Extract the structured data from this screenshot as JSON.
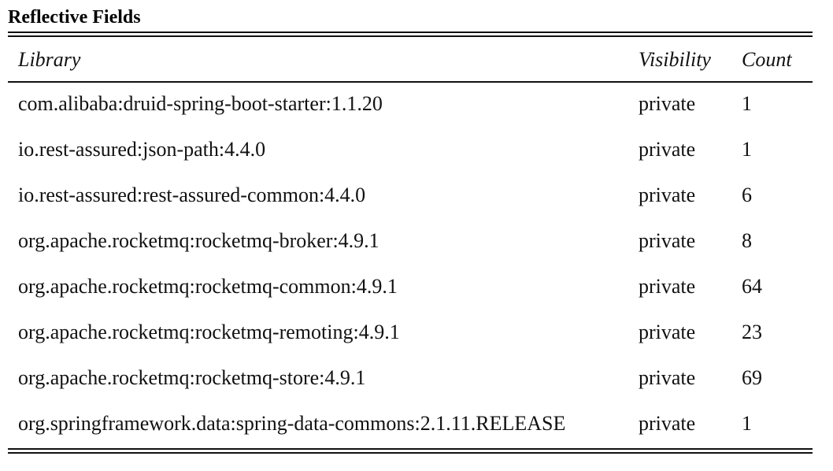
{
  "title": "Reflective Fields",
  "table": {
    "headers": {
      "library": "Library",
      "visibility": "Visibility",
      "count": "Count"
    },
    "rows": [
      {
        "library": "com.alibaba:druid-spring-boot-starter:1.1.20",
        "visibility": "private",
        "count": "1"
      },
      {
        "library": "io.rest-assured:json-path:4.4.0",
        "visibility": "private",
        "count": "1"
      },
      {
        "library": "io.rest-assured:rest-assured-common:4.4.0",
        "visibility": "private",
        "count": "6"
      },
      {
        "library": "org.apache.rocketmq:rocketmq-broker:4.9.1",
        "visibility": "private",
        "count": "8"
      },
      {
        "library": "org.apache.rocketmq:rocketmq-common:4.9.1",
        "visibility": "private",
        "count": "64"
      },
      {
        "library": "org.apache.rocketmq:rocketmq-remoting:4.9.1",
        "visibility": "private",
        "count": "23"
      },
      {
        "library": "org.apache.rocketmq:rocketmq-store:4.9.1",
        "visibility": "private",
        "count": "69"
      },
      {
        "library": "org.springframework.data:spring-data-commons:2.1.11.RELEASE",
        "visibility": "private",
        "count": "1"
      }
    ]
  }
}
